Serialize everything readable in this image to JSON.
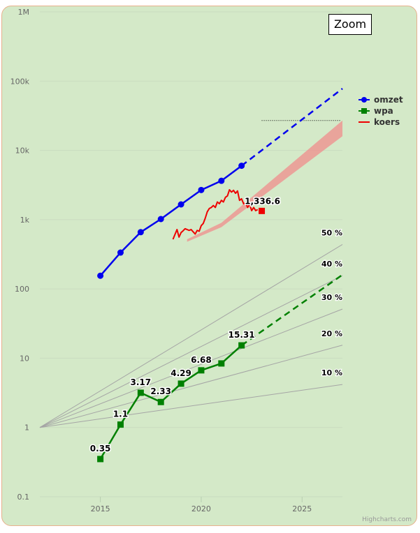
{
  "chart_data": {
    "type": "line",
    "y_scale": "log",
    "xlim": [
      2012,
      2027
    ],
    "ylim": [
      0.1,
      1000000
    ],
    "x_ticks": [
      2015,
      2020,
      2025
    ],
    "y_ticks": [
      {
        "value": 0.1,
        "label": "0.1"
      },
      {
        "value": 1,
        "label": "1"
      },
      {
        "value": 10,
        "label": "10"
      },
      {
        "value": 100,
        "label": "100"
      },
      {
        "value": 1000,
        "label": "1k"
      },
      {
        "value": 10000,
        "label": "10k"
      },
      {
        "value": 100000,
        "label": "100k"
      },
      {
        "value": 1000000,
        "label": "1M"
      }
    ],
    "grid": true,
    "legend_position": "right",
    "series": [
      {
        "name": "omzet",
        "color": "#0000ee",
        "marker": "circle",
        "x": [
          2015,
          2016,
          2017,
          2018,
          2019,
          2020,
          2021,
          2022
        ],
        "y": [
          155,
          335,
          660,
          1020,
          1660,
          2680,
          3640,
          6000
        ],
        "projection": {
          "x": [
            2022,
            2027
          ],
          "y": [
            6000,
            78000
          ]
        }
      },
      {
        "name": "wpa",
        "color": "#008000",
        "marker": "square",
        "x": [
          2015,
          2016,
          2017,
          2018,
          2019,
          2020,
          2021,
          2022
        ],
        "y": [
          0.35,
          1.1,
          3.17,
          2.33,
          4.29,
          6.68,
          8.4,
          15.31
        ],
        "labels": [
          "0.35",
          "1.1",
          "3.17",
          "2.33",
          "4.29",
          "6.68",
          "",
          "15.31"
        ],
        "projection": {
          "x": [
            2022,
            2027
          ],
          "y": [
            15.31,
            160
          ]
        }
      },
      {
        "name": "koers",
        "color": "#ee0000",
        "x": [
          2018.6,
          2018.8,
          2018.9,
          2019.0,
          2019.1,
          2019.2,
          2019.4,
          2019.5,
          2019.7,
          2019.8,
          2019.9,
          2020.0,
          2020.1,
          2020.2,
          2020.3,
          2020.4,
          2020.5,
          2020.6,
          2020.7,
          2020.8,
          2020.9,
          2021.0,
          2021.1,
          2021.2,
          2021.3,
          2021.4,
          2021.5,
          2021.6,
          2021.7,
          2021.8,
          2021.9,
          2022.0,
          2022.1,
          2022.2,
          2022.3,
          2022.4,
          2022.5,
          2022.6,
          2022.7,
          2022.8
        ],
        "y": [
          520,
          720,
          560,
          650,
          690,
          740,
          700,
          720,
          620,
          700,
          680,
          820,
          880,
          1050,
          1300,
          1450,
          1500,
          1600,
          1500,
          1800,
          1700,
          1900,
          1800,
          2100,
          2200,
          2700,
          2500,
          2650,
          2400,
          2600,
          1900,
          2000,
          1700,
          1750,
          1500,
          1650,
          1350,
          1500,
          1350,
          1400
        ]
      }
    ],
    "last_price": {
      "x": 2023.0,
      "y": 1336.6,
      "label": "1,336.6"
    },
    "band": {
      "x": [
        2019.3,
        2021.0,
        2027.0
      ],
      "low": [
        480,
        780,
        16000
      ],
      "high": [
        520,
        900,
        27000
      ]
    },
    "target_line": {
      "x": [
        2023.0,
        2026.9
      ],
      "y": 27000
    },
    "growth_guides": {
      "origin": {
        "x": 2012,
        "y": 1
      },
      "end_x": 2027,
      "lines": [
        {
          "rate": 0.5,
          "label": "50 %"
        },
        {
          "rate": 0.4,
          "label": "40 %"
        },
        {
          "rate": 0.3,
          "label": "30 %"
        },
        {
          "rate": 0.2,
          "label": "20 %"
        },
        {
          "rate": 0.1,
          "label": "10 %"
        }
      ]
    }
  },
  "ui": {
    "zoom_label": "Zoom",
    "credits": "Highcharts.com"
  }
}
